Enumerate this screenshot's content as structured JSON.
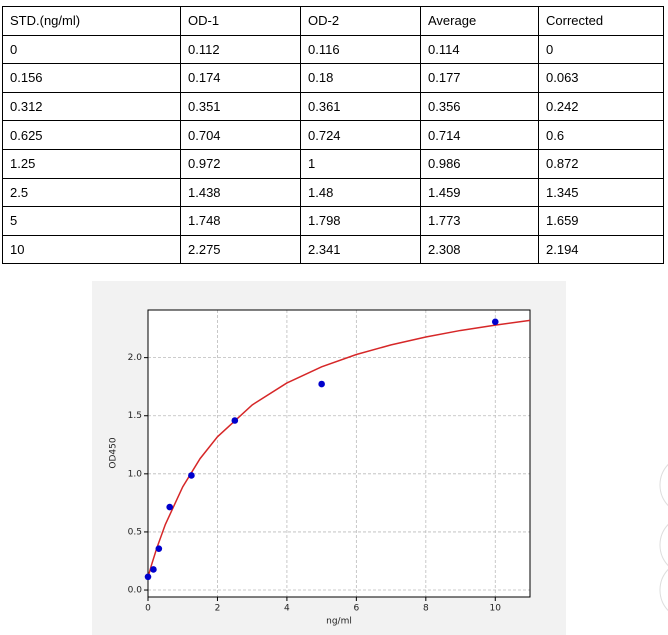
{
  "table": {
    "header": [
      "STD.(ng/ml)",
      "OD-1",
      "OD-2",
      "Average",
      "Corrected"
    ],
    "rows": [
      [
        "0",
        "0.112",
        "0.116",
        "0.114",
        "0"
      ],
      [
        "0.156",
        "0.174",
        "0.18",
        "0.177",
        "0.063"
      ],
      [
        "0.312",
        "0.351",
        "0.361",
        "0.356",
        "0.242"
      ],
      [
        "0.625",
        "0.704",
        "0.724",
        "0.714",
        "0.6"
      ],
      [
        "1.25",
        "0.972",
        "1",
        "0.986",
        "0.872"
      ],
      [
        "2.5",
        "1.438",
        "1.48",
        "1.459",
        "1.345"
      ],
      [
        "5",
        "1.748",
        "1.798",
        "1.773",
        "1.659"
      ],
      [
        "10",
        "2.275",
        "2.341",
        "2.308",
        "2.194"
      ]
    ]
  },
  "chart_data": {
    "type": "scatter",
    "xlabel": "ng/ml",
    "ylabel": "OD450",
    "x": [
      0,
      0.156,
      0.312,
      0.625,
      1.25,
      2.5,
      5,
      10
    ],
    "values": [
      0.114,
      0.177,
      0.356,
      0.714,
      0.986,
      1.459,
      1.773,
      2.308
    ],
    "color": "#0000cc",
    "fit": {
      "color": "#d62728",
      "x": [
        0,
        0.1,
        0.25,
        0.5,
        1,
        1.5,
        2,
        3,
        4,
        5,
        6,
        7,
        8,
        9,
        10,
        11
      ],
      "values": [
        0.11,
        0.215,
        0.358,
        0.565,
        0.888,
        1.131,
        1.319,
        1.593,
        1.782,
        1.921,
        2.027,
        2.11,
        2.178,
        2.234,
        2.28,
        2.321
      ]
    },
    "xlim": [
      0,
      11
    ],
    "ylim": [
      -0.06,
      2.41
    ],
    "xticks": [
      0,
      2,
      4,
      6,
      8,
      10
    ],
    "yticks": [
      {
        "value": 0,
        "label": "0.0"
      },
      {
        "value": 0.5,
        "label": "0.5"
      },
      {
        "value": 1,
        "label": "1.0"
      },
      {
        "value": 1.5,
        "label": "1.5"
      },
      {
        "value": 2,
        "label": "2.0"
      }
    ],
    "grid": true
  }
}
